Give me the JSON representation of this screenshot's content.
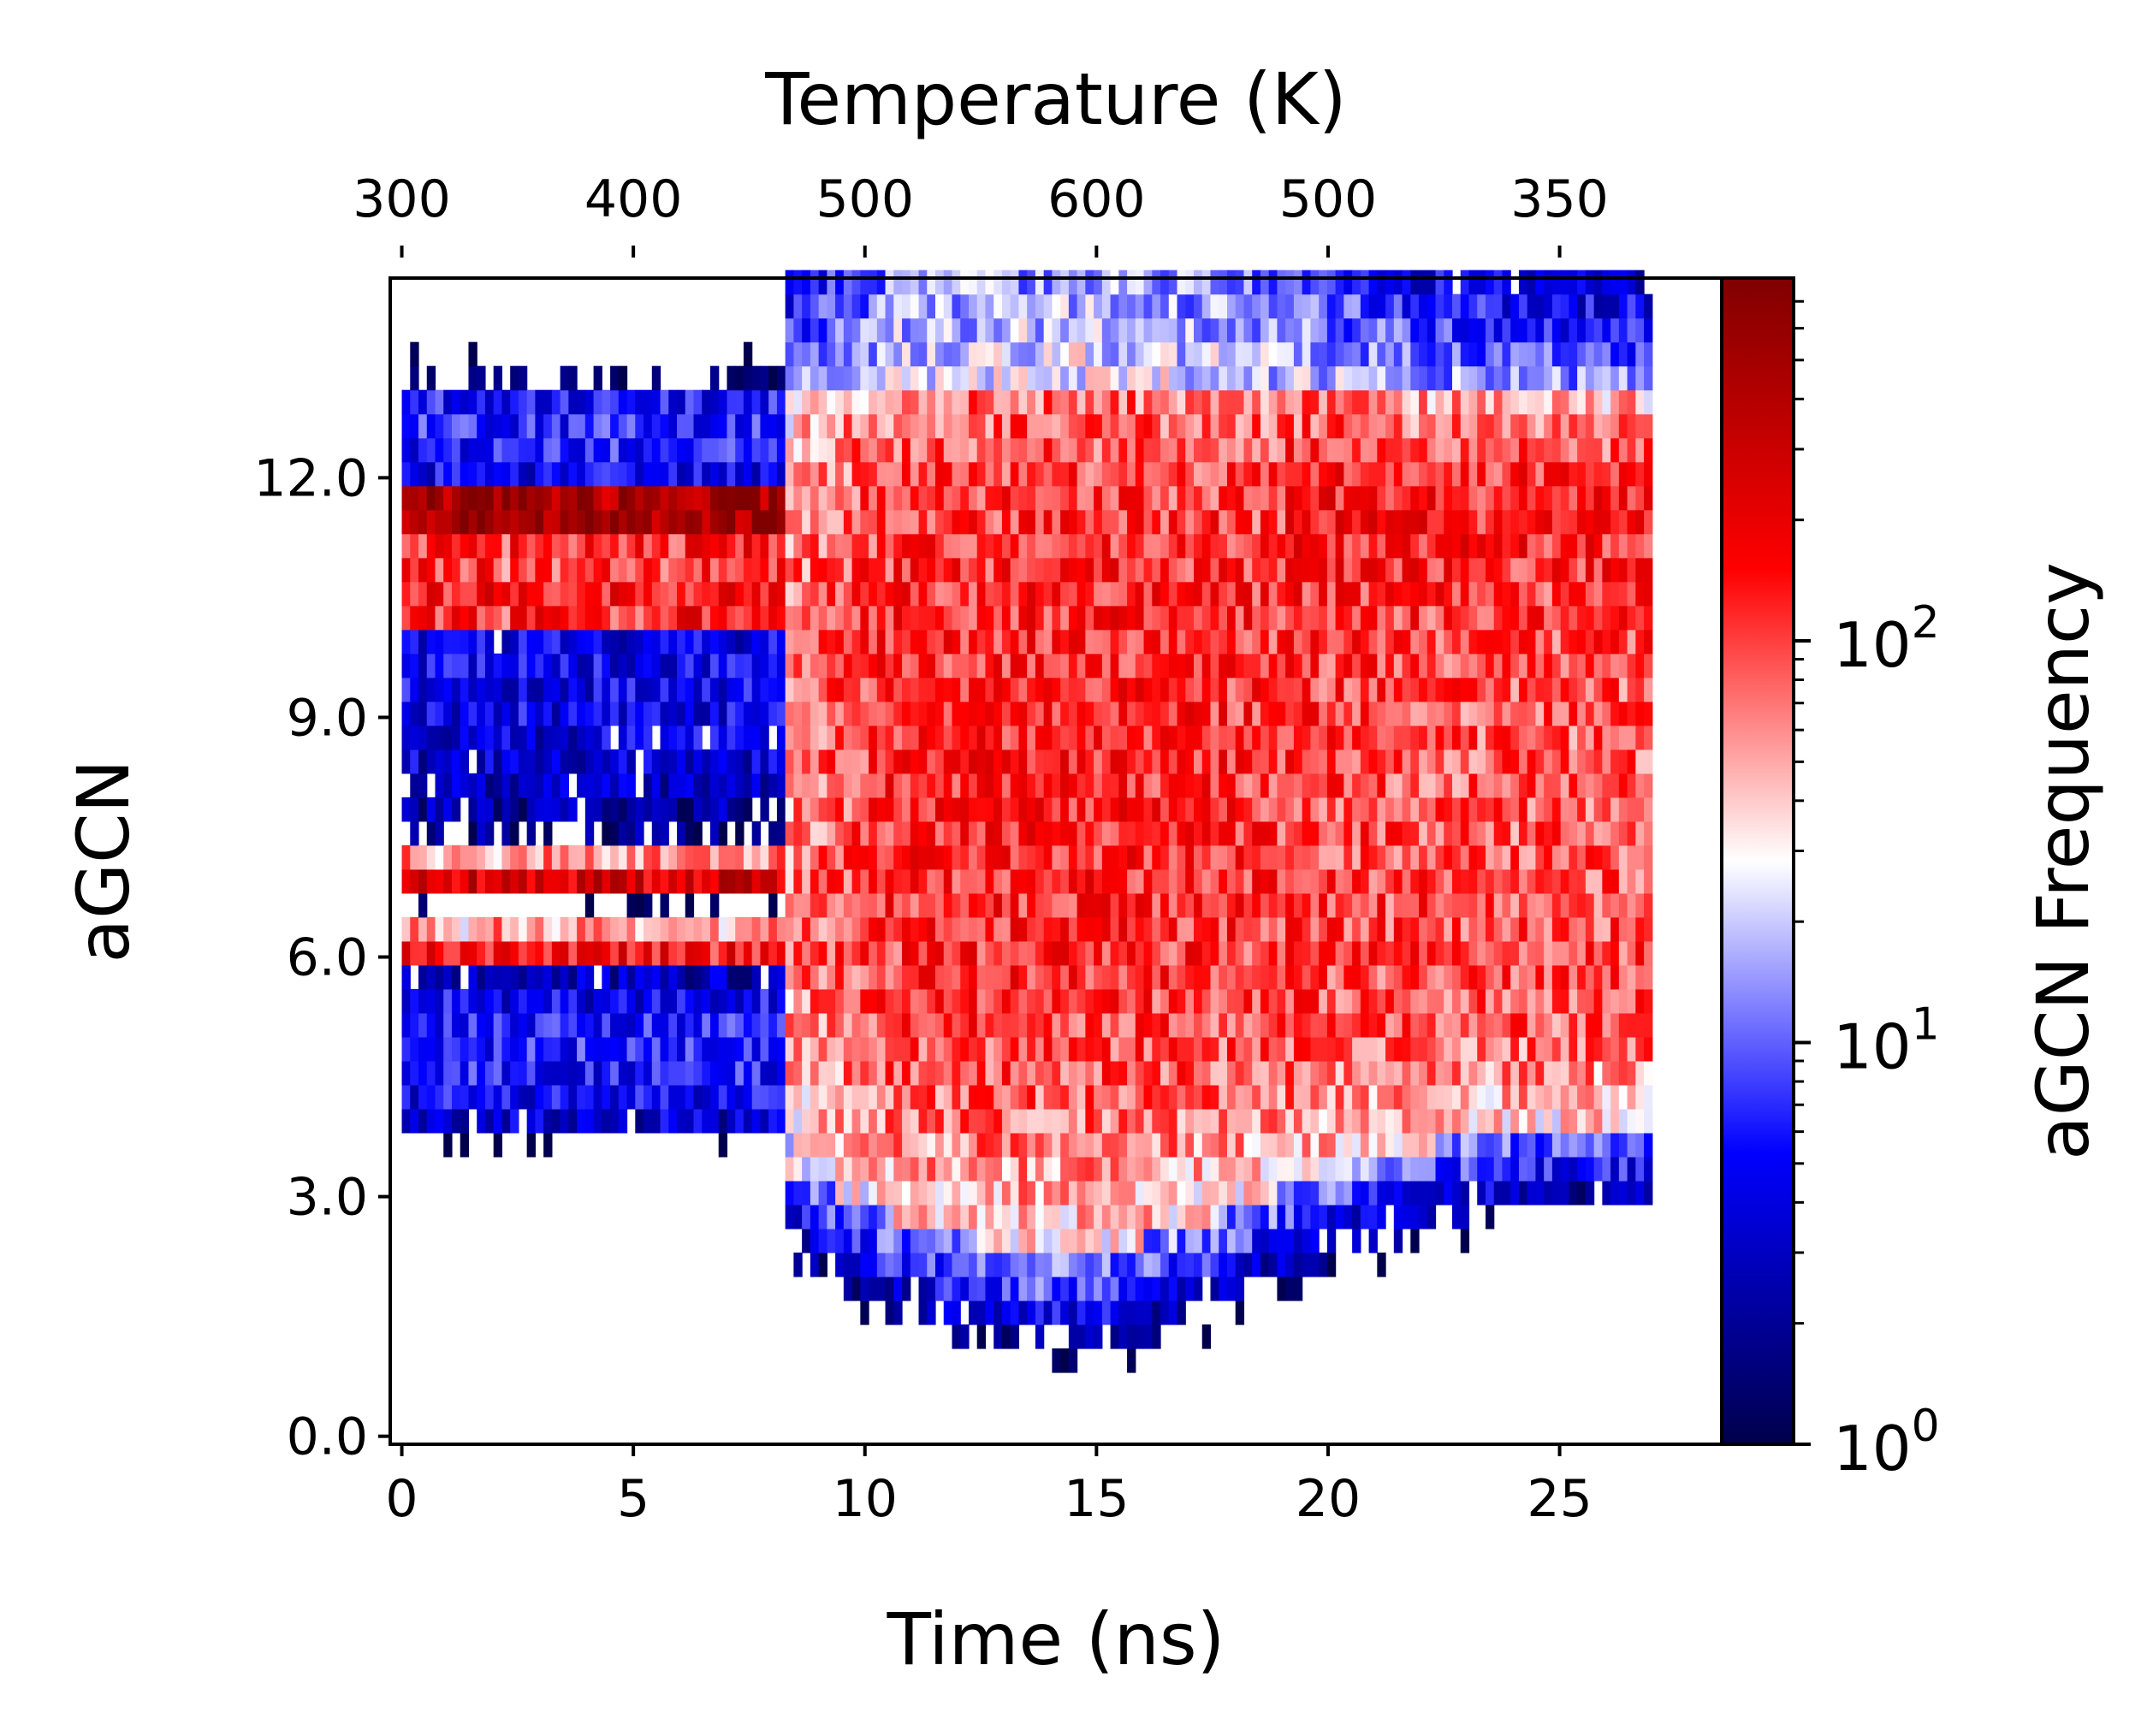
{
  "chart_data": {
    "type": "heatmap",
    "title": "",
    "xlabel": "Time (ns)",
    "ylabel": "aGCN",
    "top_xlabel": "Temperature (K)",
    "colorbar_label": "aGCN Frequency",
    "colorbar_scale": "log",
    "colorbar_range": [
      1,
      800
    ],
    "colormap": "seismic",
    "colormap_colors": {
      "dark_blue": "#00004c",
      "blue": "#0000ff",
      "white": "#ffffff",
      "red": "#ff0000",
      "dark_red": "#800000"
    },
    "xlim": [
      -0.25,
      28.5
    ],
    "ylim": [
      -0.1,
      14.5
    ],
    "x_ticks": [
      {
        "value": 0,
        "label": "0"
      },
      {
        "value": 5,
        "label": "5"
      },
      {
        "value": 10,
        "label": "10"
      },
      {
        "value": 15,
        "label": "15"
      },
      {
        "value": 20,
        "label": "20"
      },
      {
        "value": 25,
        "label": "25"
      }
    ],
    "y_ticks": [
      {
        "value": 0,
        "label": "0.0"
      },
      {
        "value": 3,
        "label": "3.0"
      },
      {
        "value": 6,
        "label": "6.0"
      },
      {
        "value": 9,
        "label": "9.0"
      },
      {
        "value": 12,
        "label": "12.0"
      }
    ],
    "top_ticks": [
      {
        "time": 0,
        "label": "300"
      },
      {
        "time": 5,
        "label": "400"
      },
      {
        "time": 10,
        "label": "500"
      },
      {
        "time": 15,
        "label": "600"
      },
      {
        "time": 20,
        "label": "500"
      },
      {
        "time": 25,
        "label": "350"
      }
    ],
    "colorbar_ticks": [
      {
        "value": 1,
        "base": "10",
        "exp": "0"
      },
      {
        "value": 10,
        "base": "10",
        "exp": "1"
      },
      {
        "value": 100,
        "base": "10",
        "exp": "2"
      }
    ],
    "grid": false,
    "data_x_range": [
      0,
      27
    ],
    "data_y_range": [
      0.5,
      14.5
    ],
    "bin_width_ns": 0.18,
    "bin_height_agcn": 0.3,
    "bands": [
      {
        "agcn": 11.7,
        "frequency_early": 500,
        "frequency_late": 150
      },
      {
        "agcn": 10.6,
        "frequency_early": 150,
        "frequency_late": 120
      },
      {
        "agcn": 6.9,
        "frequency_early": 250,
        "frequency_late": 40
      },
      {
        "agcn": 6.0,
        "frequency_early": 150,
        "frequency_late": 40
      }
    ]
  }
}
